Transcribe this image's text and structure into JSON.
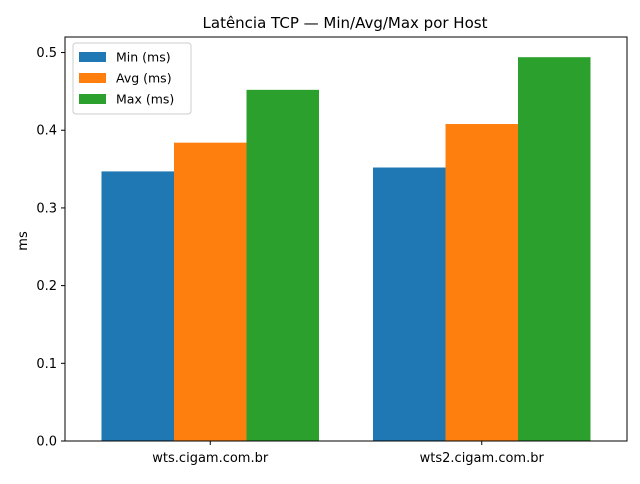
{
  "chart_data": {
    "type": "bar",
    "title": "Latência TCP — Min/Avg/Max por Host",
    "xlabel": "",
    "ylabel": "ms",
    "categories": [
      "wts.cigam.com.br",
      "wts2.cigam.com.br"
    ],
    "series": [
      {
        "name": "Min (ms)",
        "values": [
          0.347,
          0.352
        ],
        "color": "#1f77b4"
      },
      {
        "name": "Avg (ms)",
        "values": [
          0.384,
          0.408
        ],
        "color": "#ff7f0e"
      },
      {
        "name": "Max (ms)",
        "values": [
          0.452,
          0.494
        ],
        "color": "#2ca02c"
      }
    ],
    "ylim": [
      0,
      0.52
    ],
    "yticks": [
      "0.0",
      "0.1",
      "0.2",
      "0.3",
      "0.4",
      "0.5"
    ],
    "grid": false,
    "legend_position": "top-left"
  }
}
